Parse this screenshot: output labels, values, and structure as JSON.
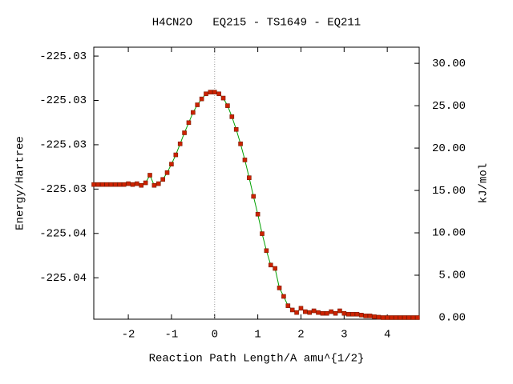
{
  "chart_data": {
    "type": "line",
    "title": "H4CN2O   EQ215 - TS1649 - EQ211",
    "xlabel": "Reaction Path Length/A amu^{1/2}",
    "ylabel": "Energy/Hartree",
    "y2label": "kJ/mol",
    "xlim": [
      -2.8,
      4.74
    ],
    "xticks": [
      -2,
      -1,
      0,
      1,
      2,
      3,
      4
    ],
    "ylim": [
      -225.03987,
      -225.0276
    ],
    "yticks": [
      {
        "value": -225.028,
        "label": "-225.03"
      },
      {
        "value": -225.03,
        "label": "-225.03"
      },
      {
        "value": -225.032,
        "label": "-225.03"
      },
      {
        "value": -225.034,
        "label": "-225.03"
      },
      {
        "value": -225.036,
        "label": "-225.04"
      },
      {
        "value": -225.038,
        "label": "-225.04"
      }
    ],
    "y2lim": [
      -0.19,
      31.9
    ],
    "y2ticks": [
      {
        "value": 0,
        "label": "0.00"
      },
      {
        "value": 5,
        "label": "5.00"
      },
      {
        "value": 10,
        "label": "10.00"
      },
      {
        "value": 15,
        "label": "15.00"
      },
      {
        "value": 20,
        "label": "20.00"
      },
      {
        "value": 25,
        "label": "25.00"
      },
      {
        "value": 30,
        "label": "30.00"
      }
    ],
    "x": [
      -2.8,
      -2.7,
      -2.6,
      -2.5,
      -2.4,
      -2.3,
      -2.2,
      -2.1,
      -2.0,
      -1.9,
      -1.8,
      -1.7,
      -1.6,
      -1.5,
      -1.4,
      -1.3,
      -1.2,
      -1.1,
      -1.0,
      -0.9,
      -0.8,
      -0.7,
      -0.6,
      -0.5,
      -0.4,
      -0.3,
      -0.2,
      -0.1,
      0.0,
      0.1,
      0.2,
      0.3,
      0.4,
      0.5,
      0.6,
      0.7,
      0.8,
      0.9,
      1.0,
      1.1,
      1.2,
      1.3,
      1.4,
      1.5,
      1.6,
      1.7,
      1.8,
      1.9,
      2.0,
      2.1,
      2.2,
      2.3,
      2.4,
      2.5,
      2.6,
      2.7,
      2.8,
      2.9,
      3.0,
      3.1,
      3.2,
      3.3,
      3.4,
      3.5,
      3.6,
      3.7,
      3.8,
      3.9,
      4.0,
      4.1,
      4.2,
      4.3,
      4.4,
      4.5,
      4.6,
      4.7
    ],
    "series": [
      {
        "axis": "y2",
        "color": "#00a000",
        "marker_color": "#cc2200",
        "values": [
          15.7,
          15.7,
          15.7,
          15.7,
          15.7,
          15.7,
          15.7,
          15.7,
          15.8,
          15.7,
          15.8,
          15.6,
          15.9,
          16.8,
          15.6,
          15.8,
          16.3,
          17.1,
          18.1,
          19.2,
          20.5,
          21.8,
          23.0,
          24.2,
          25.1,
          25.8,
          26.4,
          26.6,
          26.6,
          26.4,
          25.9,
          25.0,
          23.7,
          22.2,
          20.5,
          18.6,
          16.5,
          14.3,
          12.2,
          9.9,
          7.9,
          6.2,
          5.8,
          3.5,
          2.5,
          1.4,
          0.9,
          0.6,
          1.1,
          0.7,
          0.6,
          0.8,
          0.6,
          0.5,
          0.5,
          0.7,
          0.5,
          0.8,
          0.5,
          0.4,
          0.4,
          0.4,
          0.3,
          0.2,
          0.2,
          0.1,
          0.05,
          0.0,
          0.0,
          0.0,
          0.0,
          0.0,
          0.0,
          0.0,
          0.0,
          0.0
        ]
      }
    ]
  }
}
